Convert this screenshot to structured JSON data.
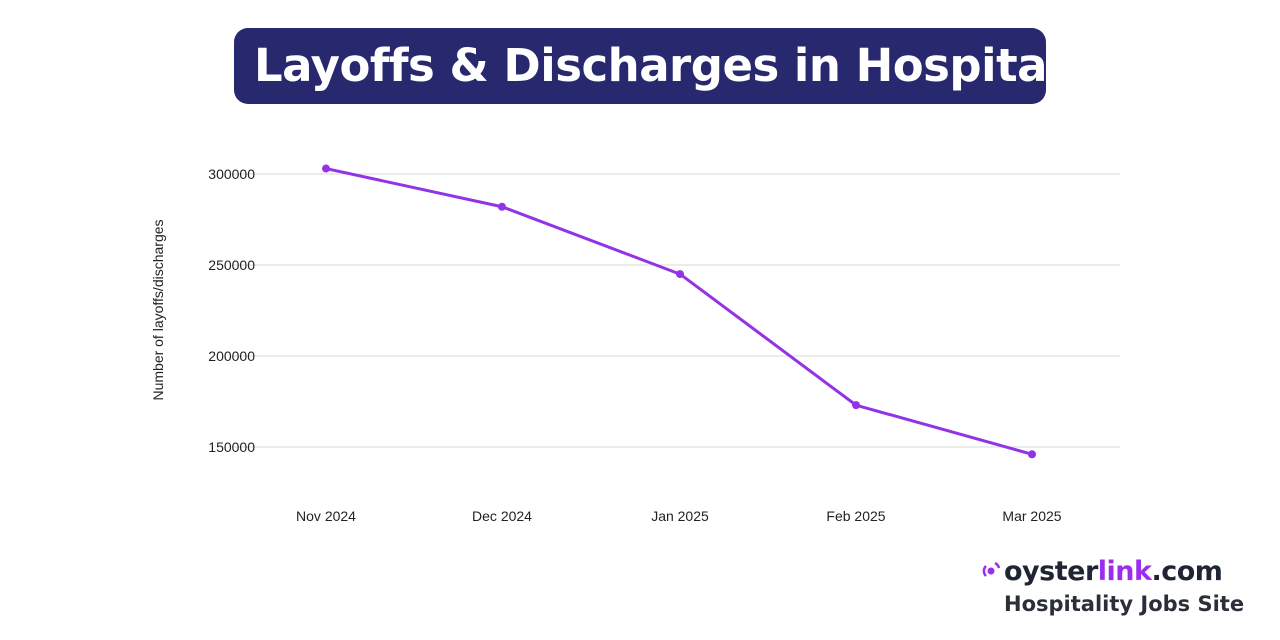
{
  "chart_data": {
    "type": "line",
    "title": "Layoffs & Discharges in Hospitality",
    "xlabel": "",
    "ylabel": "Number of layoffs/discharges",
    "categories": [
      "Nov 2024",
      "Dec 2024",
      "Jan 2025",
      "Feb 2025",
      "Mar 2025"
    ],
    "values": [
      303000,
      282000,
      245000,
      173000,
      146000
    ],
    "yticks": [
      "300000",
      "250000",
      "200000",
      "150000"
    ],
    "ylim": [
      130000,
      310000
    ],
    "grid": true,
    "line_color": "#9333e6"
  },
  "title_bg": "#27286e",
  "logo": {
    "prefix": "oyster",
    "accent": "link",
    "suffix": ".com",
    "tagline": "Hospitality Jobs Site",
    "accent_color": "#9b2cf0"
  }
}
